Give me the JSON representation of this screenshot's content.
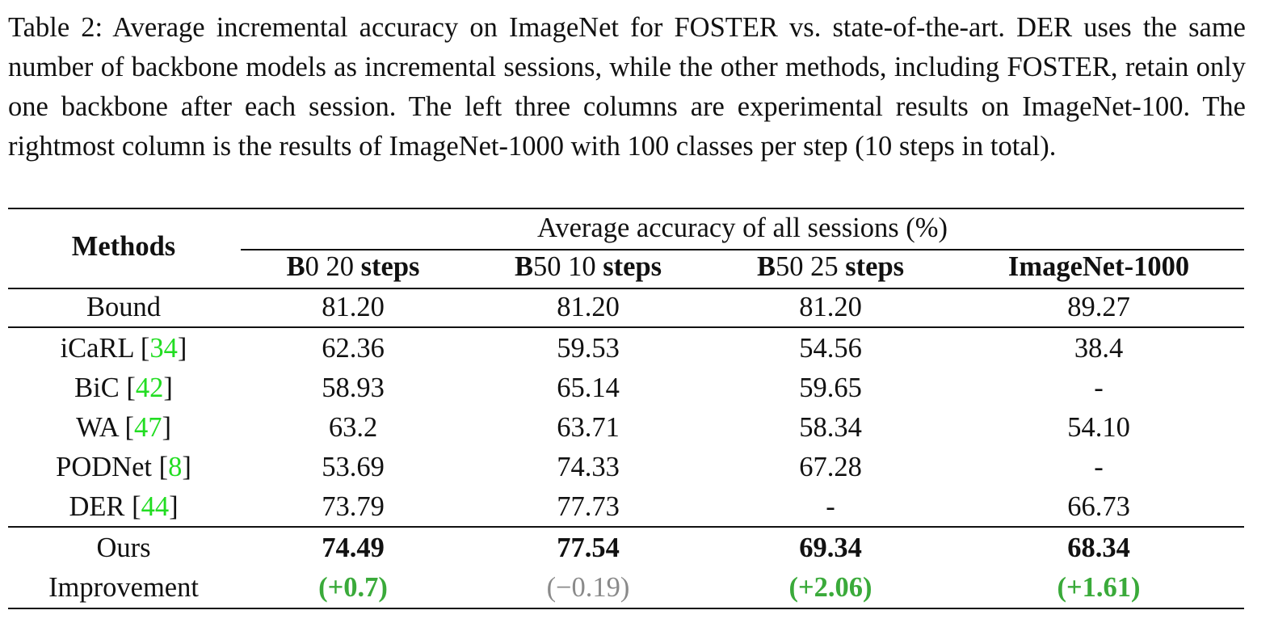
{
  "caption": "Table 2: Average incremental accuracy on ImageNet for FOSTER vs. state-of-the-art. DER uses the same number of backbone models as incremental sessions, while the other methods, including FOSTER, retain only one backbone after each session. The left three columns are experimental results on ImageNet-100. The rightmost column is the results of ImageNet-1000 with 100 classes per step (10 steps in total).",
  "table": {
    "methods_header": "Methods",
    "group_header": "Average accuracy of all sessions (%)",
    "columns": [
      [
        {
          "text": "B",
          "bold": true
        },
        {
          "text": "0 20 ",
          "bold": false
        },
        {
          "text": "steps",
          "bold": true
        }
      ],
      [
        {
          "text": "B",
          "bold": true
        },
        {
          "text": "50 10 ",
          "bold": false
        },
        {
          "text": "steps",
          "bold": true
        }
      ],
      [
        {
          "text": "B",
          "bold": true
        },
        {
          "text": "50 25 ",
          "bold": false
        },
        {
          "text": "steps",
          "bold": true
        }
      ],
      [
        {
          "text": "ImageNet-1000",
          "bold": true
        }
      ]
    ],
    "sections": [
      [
        {
          "method": "Bound",
          "values": [
            "81.20",
            "81.20",
            "81.20",
            "89.27"
          ]
        }
      ],
      [
        {
          "method": "iCaRL",
          "citation": {
            "open": "[",
            "ref": "34",
            "close": "]"
          },
          "values": [
            "62.36",
            "59.53",
            "54.56",
            "38.4"
          ]
        },
        {
          "method": "BiC",
          "citation": {
            "open": "[",
            "ref": "42",
            "close": "]"
          },
          "values": [
            "58.93",
            "65.14",
            "59.65",
            "-"
          ]
        },
        {
          "method": "WA",
          "citation": {
            "open": "[",
            "ref": "47",
            "close": "]"
          },
          "values": [
            "63.2",
            "63.71",
            "58.34",
            "54.10"
          ]
        },
        {
          "method": "PODNet",
          "citation": {
            "open": "[",
            "ref": "8",
            "close": "]"
          },
          "values": [
            "53.69",
            "74.33",
            "67.28",
            "-"
          ]
        },
        {
          "method": "DER",
          "citation": {
            "open": "[",
            "ref": "44",
            "close": "]"
          },
          "values": [
            "73.79",
            "77.73",
            "-",
            "66.73"
          ]
        }
      ],
      [
        {
          "method": "Ours",
          "bold": true,
          "values": [
            "74.49",
            "77.54",
            "69.34",
            "68.34"
          ]
        },
        {
          "method": "Improvement",
          "values": [
            {
              "text": "(+0.7)",
              "tone": "gain"
            },
            {
              "text": "(−0.19)",
              "tone": "loss"
            },
            {
              "text": "(+2.06)",
              "tone": "gain"
            },
            {
              "text": "(+1.61)",
              "tone": "gain"
            }
          ]
        }
      ]
    ]
  }
}
